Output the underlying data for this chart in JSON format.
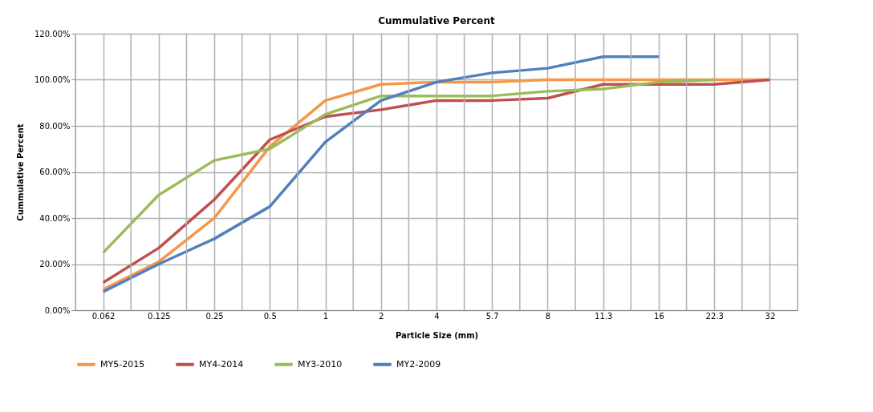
{
  "chart_data": {
    "type": "line",
    "title": "Cummulative Percent",
    "xlabel": "Particle Size (mm)",
    "ylabel": "Cummulative Percent",
    "categories": [
      "0.062",
      "0.125",
      "0.25",
      "0.5",
      "1",
      "2",
      "4",
      "5.7",
      "8",
      "11.3",
      "16",
      "22.3",
      "32"
    ],
    "series": [
      {
        "name": "MY5-2015",
        "color": "#f79646",
        "values": [
          9,
          21,
          40,
          71,
          91,
          98,
          99,
          99,
          100,
          100,
          100,
          100,
          100
        ]
      },
      {
        "name": "MY4-2014",
        "color": "#c0504d",
        "values": [
          12,
          27,
          48,
          74,
          84,
          87,
          91,
          91,
          92,
          98,
          98,
          98,
          100
        ]
      },
      {
        "name": "MY3-2010",
        "color": "#9bbb59",
        "values": [
          25,
          50,
          65,
          70,
          85,
          93,
          93,
          93,
          95,
          96,
          99,
          100,
          null
        ]
      },
      {
        "name": "MY2-2009",
        "color": "#4f81bd",
        "values": [
          8,
          20,
          31,
          45,
          73,
          91,
          99,
          103,
          105,
          110,
          110,
          null,
          null
        ]
      }
    ],
    "ylim": [
      0,
      120
    ],
    "yticks": [
      {
        "value": 0,
        "label": "0.00%"
      },
      {
        "value": 20,
        "label": "20.00%"
      },
      {
        "value": 40,
        "label": "40.00%"
      },
      {
        "value": 60,
        "label": "60.00%"
      },
      {
        "value": 80,
        "label": "80.00%"
      },
      {
        "value": 100,
        "label": "100.00%"
      },
      {
        "value": 120,
        "label": "120.00%"
      }
    ],
    "grid": true,
    "legend": "bottom",
    "marker": "none",
    "line_style": "solid"
  }
}
